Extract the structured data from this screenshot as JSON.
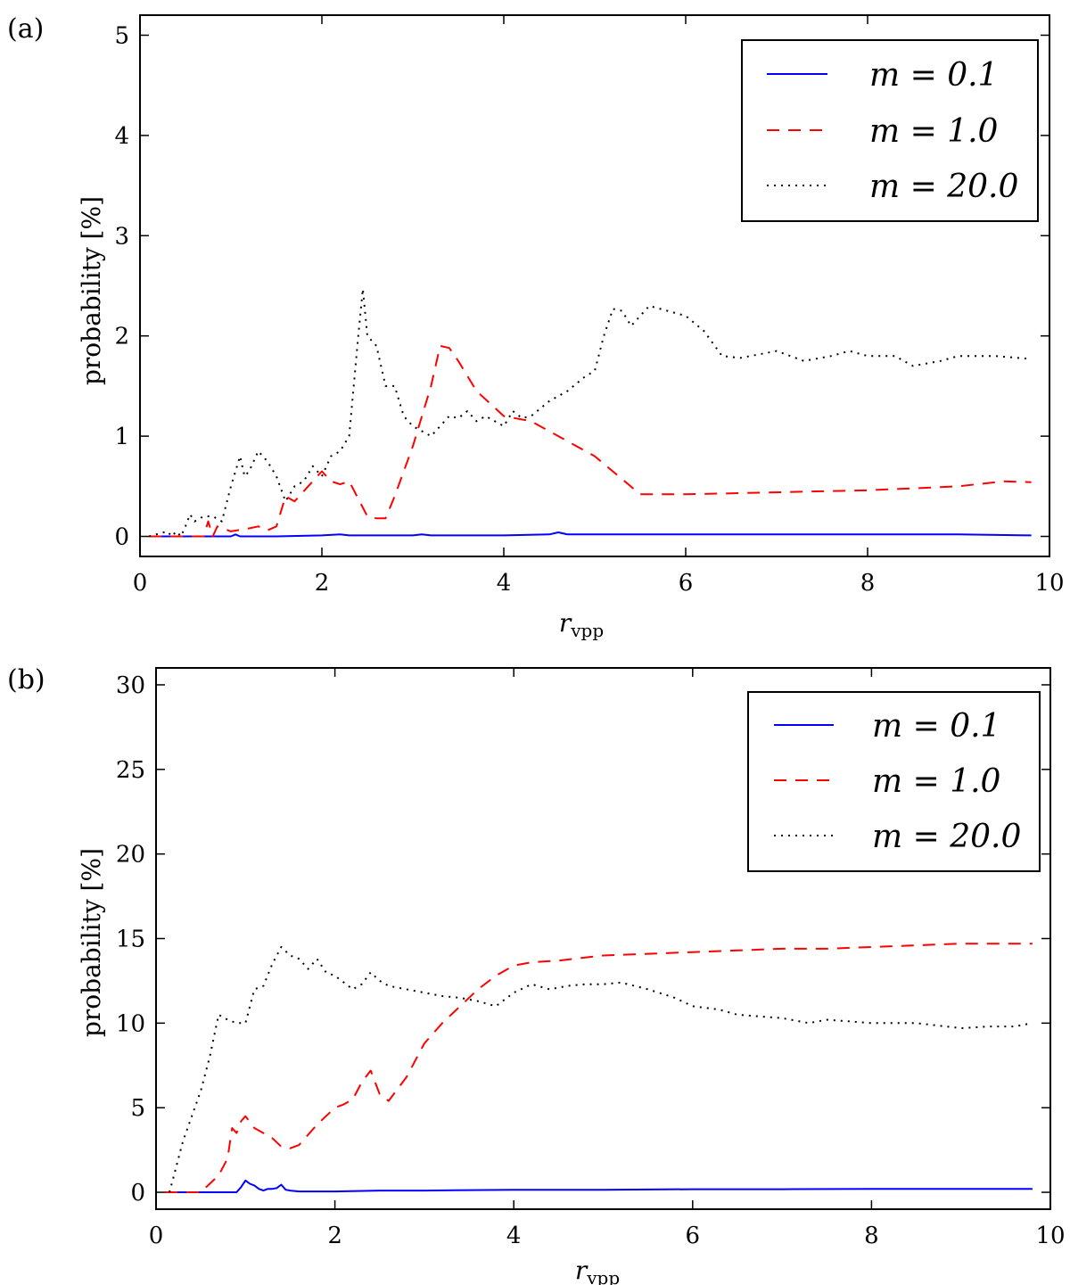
{
  "chart_data": [
    {
      "type": "line",
      "panel_label": "(a)",
      "xlabel": "r",
      "xlabel_sub": "vpp",
      "ylabel": "probability [%]",
      "xlim": [
        0,
        10
      ],
      "ylim": [
        -0.2,
        5.2
      ],
      "xticks": [
        0,
        2,
        4,
        6,
        8,
        10
      ],
      "yticks": [
        0,
        1,
        2,
        3,
        4,
        5
      ],
      "legend_position": "top-right",
      "series": [
        {
          "name": "m = 0.1",
          "color": "#0000ff",
          "style": "solid",
          "x": [
            0.1,
            0.5,
            1.0,
            1.05,
            1.1,
            1.5,
            2.0,
            2.2,
            2.3,
            3.0,
            3.1,
            3.2,
            3.5,
            4.0,
            4.5,
            4.6,
            4.7,
            5.0,
            6.0,
            7.0,
            8.0,
            9.0,
            9.8
          ],
          "y": [
            0.0,
            0.0,
            0.0,
            0.02,
            0.0,
            0.0,
            0.01,
            0.02,
            0.01,
            0.01,
            0.02,
            0.01,
            0.01,
            0.01,
            0.02,
            0.04,
            0.02,
            0.02,
            0.02,
            0.02,
            0.02,
            0.02,
            0.01
          ]
        },
        {
          "name": "m = 1.0",
          "color": "#ff0000",
          "style": "dashed",
          "x": [
            0.1,
            0.5,
            0.7,
            0.75,
            0.8,
            0.85,
            1.0,
            1.2,
            1.3,
            1.4,
            1.5,
            1.6,
            1.7,
            1.8,
            1.9,
            2.0,
            2.1,
            2.2,
            2.3,
            2.5,
            2.6,
            2.7,
            2.8,
            3.0,
            3.2,
            3.3,
            3.4,
            3.5,
            3.7,
            4.0,
            4.3,
            4.6,
            5.0,
            5.5,
            6.0,
            6.5,
            7.0,
            7.5,
            8.0,
            8.5,
            9.0,
            9.5,
            9.8
          ],
          "y": [
            0.0,
            0.0,
            0.0,
            0.15,
            0.0,
            0.1,
            0.05,
            0.08,
            0.1,
            0.06,
            0.1,
            0.4,
            0.35,
            0.45,
            0.55,
            0.65,
            0.55,
            0.52,
            0.55,
            0.2,
            0.18,
            0.18,
            0.4,
            0.9,
            1.5,
            1.9,
            1.88,
            1.75,
            1.45,
            1.2,
            1.15,
            1.0,
            0.8,
            0.42,
            0.42,
            0.43,
            0.44,
            0.45,
            0.46,
            0.48,
            0.5,
            0.55,
            0.54
          ]
        },
        {
          "name": "m = 20.0",
          "color": "#000000",
          "style": "dotted",
          "x": [
            0.1,
            0.3,
            0.35,
            0.4,
            0.45,
            0.5,
            0.55,
            0.6,
            0.7,
            0.8,
            0.9,
            1.0,
            1.05,
            1.1,
            1.15,
            1.2,
            1.3,
            1.4,
            1.5,
            1.6,
            1.7,
            1.8,
            1.9,
            2.0,
            2.1,
            2.2,
            2.3,
            2.4,
            2.45,
            2.5,
            2.6,
            2.7,
            2.8,
            2.9,
            3.0,
            3.1,
            3.2,
            3.3,
            3.4,
            3.5,
            3.6,
            3.7,
            3.8,
            3.9,
            4.0,
            4.1,
            4.2,
            4.3,
            4.5,
            4.7,
            4.9,
            5.0,
            5.1,
            5.2,
            5.3,
            5.4,
            5.5,
            5.6,
            5.8,
            6.0,
            6.2,
            6.4,
            6.6,
            7.0,
            7.3,
            7.6,
            7.8,
            8.0,
            8.3,
            8.5,
            8.8,
            9.0,
            9.4,
            9.8
          ],
          "y": [
            0.0,
            0.05,
            0.0,
            0.05,
            0.0,
            0.1,
            0.22,
            0.15,
            0.2,
            0.2,
            0.15,
            0.5,
            0.65,
            0.8,
            0.6,
            0.65,
            0.85,
            0.75,
            0.6,
            0.35,
            0.5,
            0.55,
            0.7,
            0.6,
            0.8,
            0.85,
            1.0,
            2.0,
            2.47,
            2.0,
            1.9,
            1.5,
            1.5,
            1.2,
            1.1,
            1.05,
            1.0,
            1.1,
            1.2,
            1.18,
            1.25,
            1.15,
            1.2,
            1.15,
            1.1,
            1.25,
            1.18,
            1.2,
            1.35,
            1.45,
            1.6,
            1.65,
            2.0,
            2.27,
            2.25,
            2.1,
            2.2,
            2.3,
            2.25,
            2.2,
            2.05,
            1.8,
            1.78,
            1.85,
            1.75,
            1.8,
            1.85,
            1.8,
            1.8,
            1.7,
            1.75,
            1.8,
            1.8,
            1.77
          ]
        }
      ]
    },
    {
      "type": "line",
      "panel_label": "(b)",
      "xlabel": "r",
      "xlabel_sub": "vpp",
      "ylabel": "probability [%]",
      "xlim": [
        0,
        10
      ],
      "ylim": [
        -1,
        31
      ],
      "xticks": [
        0,
        2,
        4,
        6,
        8,
        10
      ],
      "yticks": [
        0,
        5,
        10,
        15,
        20,
        25,
        30
      ],
      "legend_position": "top-right",
      "series": [
        {
          "name": "m = 0.1",
          "color": "#0000ff",
          "style": "solid",
          "x": [
            0.1,
            0.9,
            0.95,
            1.0,
            1.05,
            1.1,
            1.15,
            1.2,
            1.25,
            1.3,
            1.35,
            1.4,
            1.45,
            1.5,
            1.6,
            2.0,
            2.5,
            3.0,
            4.0,
            5.0,
            6.0,
            7.0,
            8.0,
            9.0,
            9.8
          ],
          "y": [
            0.0,
            0.0,
            0.3,
            0.7,
            0.5,
            0.4,
            0.2,
            0.1,
            0.2,
            0.2,
            0.25,
            0.45,
            0.15,
            0.1,
            0.05,
            0.05,
            0.1,
            0.1,
            0.15,
            0.15,
            0.18,
            0.18,
            0.2,
            0.2,
            0.2
          ]
        },
        {
          "name": "m = 1.0",
          "color": "#ff0000",
          "style": "dashed",
          "x": [
            0.1,
            0.5,
            0.6,
            0.7,
            0.8,
            0.85,
            0.9,
            0.95,
            1.0,
            1.1,
            1.2,
            1.3,
            1.4,
            1.5,
            1.6,
            1.8,
            2.0,
            2.1,
            2.2,
            2.3,
            2.4,
            2.5,
            2.6,
            2.8,
            3.0,
            3.2,
            3.4,
            3.6,
            3.8,
            4.0,
            4.2,
            4.5,
            5.0,
            5.5,
            6.0,
            6.5,
            7.0,
            7.5,
            8.0,
            8.5,
            9.0,
            9.5,
            9.8
          ],
          "y": [
            0.0,
            0.0,
            0.5,
            1.0,
            2.0,
            3.8,
            3.5,
            4.2,
            4.5,
            3.8,
            3.5,
            3.2,
            2.7,
            2.6,
            2.8,
            4.0,
            5.0,
            5.2,
            5.5,
            6.5,
            7.2,
            5.8,
            5.4,
            6.8,
            8.8,
            10.0,
            11.0,
            12.0,
            12.8,
            13.4,
            13.6,
            13.7,
            14.0,
            14.1,
            14.2,
            14.3,
            14.4,
            14.4,
            14.5,
            14.6,
            14.7,
            14.7,
            14.7
          ]
        },
        {
          "name": "m = 20.0",
          "color": "#000000",
          "style": "dotted",
          "x": [
            0.15,
            0.2,
            0.3,
            0.4,
            0.5,
            0.6,
            0.7,
            0.8,
            0.9,
            1.0,
            1.1,
            1.2,
            1.3,
            1.4,
            1.5,
            1.6,
            1.7,
            1.8,
            1.9,
            2.0,
            2.2,
            2.3,
            2.4,
            2.5,
            2.6,
            2.8,
            3.0,
            3.2,
            3.4,
            3.6,
            3.8,
            4.0,
            4.2,
            4.4,
            4.6,
            4.8,
            5.0,
            5.2,
            5.5,
            5.8,
            6.0,
            6.3,
            6.5,
            7.0,
            7.3,
            7.5,
            8.0,
            8.5,
            9.0,
            9.3,
            9.6,
            9.8
          ],
          "y": [
            0.0,
            1.0,
            3.0,
            4.5,
            6.0,
            8.0,
            10.5,
            10.2,
            10.0,
            10.0,
            12.0,
            12.2,
            13.5,
            14.5,
            14.0,
            13.8,
            13.2,
            13.8,
            13.0,
            12.8,
            12.0,
            12.3,
            13.0,
            12.5,
            12.2,
            12.0,
            11.8,
            11.6,
            11.5,
            11.3,
            11.0,
            11.8,
            12.3,
            12.0,
            12.2,
            12.3,
            12.3,
            12.4,
            12.0,
            11.5,
            11.0,
            10.8,
            10.5,
            10.3,
            10.0,
            10.2,
            10.0,
            10.0,
            9.7,
            9.8,
            9.8,
            10.0
          ]
        }
      ]
    }
  ]
}
